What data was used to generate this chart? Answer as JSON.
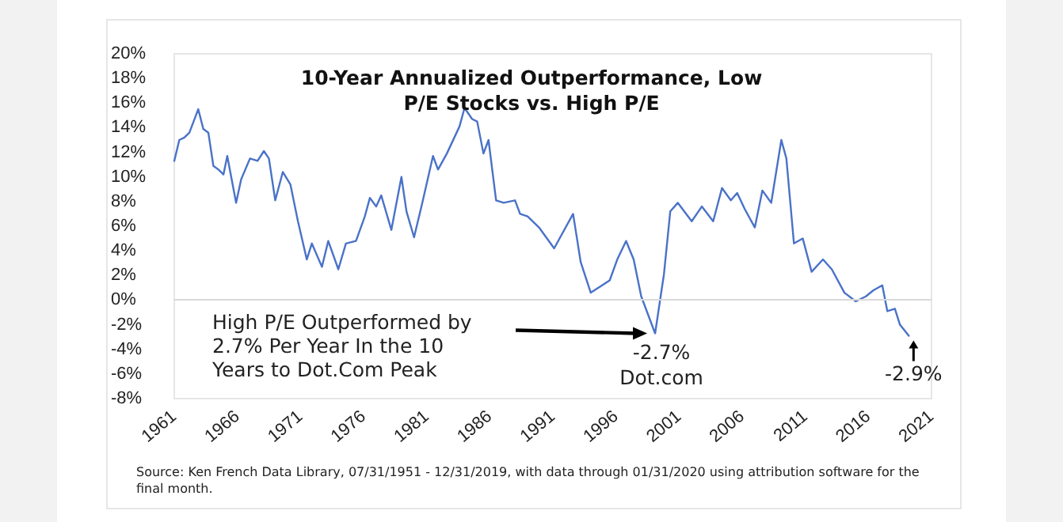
{
  "chart_data": {
    "type": "line",
    "title": "10-Year Annualized Outperformance, Low\nP/E Stocks vs. High P/E",
    "x": [
      1961.0,
      1961.4,
      1961.8,
      1962.2,
      1962.9,
      1963.3,
      1963.7,
      1964.1,
      1964.5,
      1964.9,
      1965.2,
      1965.9,
      1966.3,
      1967.0,
      1967.6,
      1968.1,
      1968.5,
      1969.0,
      1969.6,
      1970.2,
      1970.8,
      1971.5,
      1971.9,
      1972.7,
      1973.2,
      1974.0,
      1974.6,
      1975.4,
      1976.1,
      1976.5,
      1977.0,
      1977.4,
      1978.2,
      1979.0,
      1979.4,
      1980.0,
      1980.7,
      1981.5,
      1981.9,
      1982.6,
      1983.6,
      1984.0,
      1984.6,
      1985.0,
      1985.5,
      1985.9,
      1986.5,
      1987.1,
      1988.0,
      1988.4,
      1989.0,
      1989.9,
      1991.1,
      1992.6,
      1993.2,
      1994.0,
      1994.9,
      1995.5,
      1996.1,
      1996.8,
      1997.4,
      1998.0,
      1999.1,
      1999.8,
      2000.3,
      2000.9,
      2002.0,
      2002.8,
      2003.7,
      2004.4,
      2005.1,
      2005.6,
      2006.2,
      2007.0,
      2007.6,
      2008.3,
      2009.1,
      2009.5,
      2010.1,
      2010.8,
      2011.5,
      2012.4,
      2013.1,
      2014.1,
      2015.0,
      2015.8,
      2016.4,
      2017.1,
      2017.5,
      2018.1,
      2018.5,
      2019.2
    ],
    "values": [
      11.3,
      13.0,
      13.2,
      13.6,
      15.5,
      13.9,
      13.6,
      10.9,
      10.6,
      10.2,
      11.7,
      7.9,
      9.8,
      11.5,
      11.3,
      12.1,
      11.5,
      8.1,
      10.4,
      9.4,
      6.4,
      3.3,
      4.6,
      2.7,
      4.8,
      2.5,
      4.6,
      4.8,
      6.8,
      8.3,
      7.6,
      8.5,
      5.7,
      10.0,
      7.2,
      5.1,
      8.1,
      11.7,
      10.6,
      11.9,
      14.1,
      15.6,
      14.7,
      14.5,
      11.9,
      13.0,
      8.1,
      7.9,
      8.1,
      7.0,
      6.8,
      5.9,
      4.2,
      7.0,
      3.1,
      0.6,
      1.2,
      1.6,
      3.3,
      4.8,
      3.3,
      0.3,
      -2.7,
      2.1,
      7.2,
      7.9,
      6.4,
      7.6,
      6.4,
      9.1,
      8.1,
      8.7,
      7.4,
      5.9,
      8.9,
      7.9,
      13.0,
      11.5,
      4.6,
      5.0,
      2.3,
      3.3,
      2.5,
      0.6,
      -0.1,
      0.3,
      0.8,
      1.2,
      -0.9,
      -0.7,
      -2.0,
      -2.9
    ],
    "color": "#4a72c8",
    "xlim": [
      1961,
      2021
    ],
    "xticks": [
      1961,
      1966,
      1971,
      1976,
      1981,
      1986,
      1991,
      1996,
      2001,
      2006,
      2011,
      2016,
      2021
    ],
    "ylim": [
      -8,
      20
    ],
    "yticks": [
      {
        "value": -8,
        "label": "-8%"
      },
      {
        "value": -6,
        "label": "-6%"
      },
      {
        "value": -4,
        "label": "-4%"
      },
      {
        "value": -2,
        "label": "-2%"
      },
      {
        "value": 0,
        "label": "0%"
      },
      {
        "value": 2,
        "label": "2%"
      },
      {
        "value": 4,
        "label": "4%"
      },
      {
        "value": 6,
        "label": "6%"
      },
      {
        "value": 8,
        "label": "8%"
      },
      {
        "value": 10,
        "label": "10%"
      },
      {
        "value": 12,
        "label": "12%"
      },
      {
        "value": 14,
        "label": "14%"
      },
      {
        "value": 16,
        "label": "16%"
      },
      {
        "value": 18,
        "label": "18%"
      },
      {
        "value": 20,
        "label": "20%"
      }
    ],
    "ref_lines": [
      {
        "axis": "y",
        "value": 0,
        "color": "#d9d9d9"
      }
    ],
    "grid": false,
    "marker": "none",
    "line_style": "solid",
    "annotations": [
      "High P/E Outperformed by\n2.7% Per Year In the 10\nYears to Dot.Com Peak",
      {
        "text": "-2.7%\nDot.com",
        "x": 1999.1,
        "y": -2.7
      },
      {
        "text": "-2.9%",
        "x": 2019.2,
        "y": -2.9
      },
      "Source: Ken French Data Library, 07/31/1951 - 12/31/2019, with data through 01/31/2020 using attribution software for the final month."
    ]
  }
}
